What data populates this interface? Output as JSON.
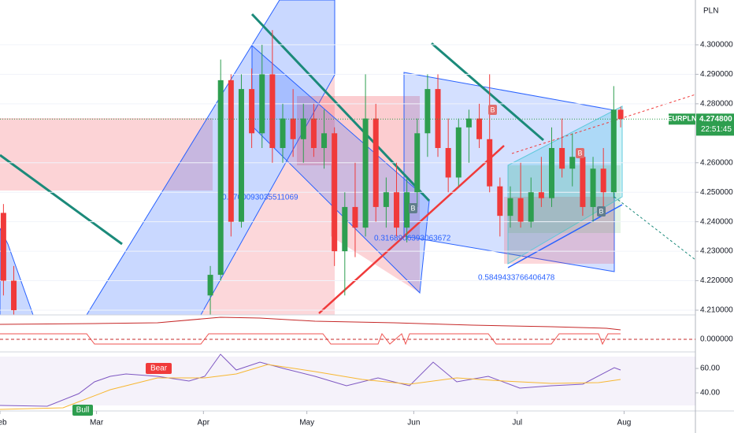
{
  "chart_data": {
    "type": "candlestick",
    "currency": "PLN",
    "symbol": "EURPLN",
    "last_price": 4.2748,
    "last_price_label": "4.274800",
    "countdown": "22:51:45",
    "up_color": "#2e9e4f",
    "down_color": "#f03a3a",
    "xlim": [
      0,
      201
    ],
    "ylim": [
      4.2084,
      4.3152
    ],
    "xticks": [
      {
        "value": 0,
        "label": "Feb"
      },
      {
        "value": 28,
        "label": "Mar"
      },
      {
        "value": 59,
        "label": "Apr"
      },
      {
        "value": 89,
        "label": "May"
      },
      {
        "value": 120,
        "label": "Jun"
      },
      {
        "value": 150,
        "label": "Jul"
      },
      {
        "value": 181,
        "label": "Aug"
      }
    ],
    "yticks": [
      {
        "value": 4.21,
        "label": "4.210000"
      },
      {
        "value": 4.22,
        "label": "4.220000"
      },
      {
        "value": 4.23,
        "label": "4.230000"
      },
      {
        "value": 4.24,
        "label": "4.240000"
      },
      {
        "value": 4.25,
        "label": "4.250000"
      },
      {
        "value": 4.26,
        "label": "4.260000"
      },
      {
        "value": 4.28,
        "label": "4.280000"
      },
      {
        "value": 4.29,
        "label": "4.290000"
      },
      {
        "value": 4.3,
        "label": "4.300000"
      }
    ],
    "x": [
      1,
      4,
      61,
      64,
      67,
      70,
      73,
      76,
      79,
      82,
      85,
      88,
      91,
      94,
      97,
      100,
      103,
      106,
      109,
      112,
      115,
      118,
      121,
      124,
      127,
      130,
      133,
      136,
      139,
      142,
      145,
      148,
      151,
      154,
      157,
      160,
      163,
      166,
      169,
      172,
      175,
      178,
      180
    ],
    "open": [
      4.243,
      4.22,
      4.215,
      4.222,
      4.288,
      4.24,
      4.285,
      4.27,
      4.29,
      4.265,
      4.275,
      4.268,
      4.275,
      4.265,
      4.27,
      4.23,
      4.245,
      4.238,
      4.275,
      4.245,
      4.25,
      4.238,
      4.25,
      4.27,
      4.285,
      4.265,
      4.255,
      4.272,
      4.275,
      4.268,
      4.252,
      4.242,
      4.248,
      4.24,
      4.25,
      4.248,
      4.265,
      4.258,
      4.262,
      4.245,
      4.258,
      4.25,
      4.278
    ],
    "high": [
      4.246,
      4.225,
      4.225,
      4.295,
      4.29,
      4.29,
      4.292,
      4.3,
      4.305,
      4.28,
      4.285,
      4.28,
      4.28,
      4.278,
      4.272,
      4.25,
      4.26,
      4.29,
      4.28,
      4.255,
      4.26,
      4.255,
      4.275,
      4.29,
      4.29,
      4.275,
      4.275,
      4.278,
      4.28,
      4.29,
      4.255,
      4.252,
      4.26,
      4.255,
      4.262,
      4.272,
      4.275,
      4.27,
      4.265,
      4.262,
      4.265,
      4.286,
      4.279
    ],
    "low": [
      4.215,
      4.205,
      4.205,
      4.22,
      4.235,
      4.238,
      4.265,
      4.265,
      4.26,
      4.26,
      4.262,
      4.26,
      4.262,
      4.258,
      4.225,
      4.215,
      4.228,
      4.235,
      4.24,
      4.238,
      4.235,
      4.233,
      4.245,
      4.262,
      4.262,
      4.25,
      4.252,
      4.26,
      4.265,
      4.25,
      4.235,
      4.238,
      4.238,
      4.238,
      4.245,
      4.245,
      4.255,
      4.252,
      4.242,
      4.24,
      4.245,
      4.248,
      4.272
    ],
    "close": [
      4.22,
      4.21,
      4.222,
      4.288,
      4.24,
      4.285,
      4.27,
      4.29,
      4.265,
      4.275,
      4.268,
      4.275,
      4.265,
      4.27,
      4.23,
      4.245,
      4.238,
      4.275,
      4.245,
      4.25,
      4.238,
      4.25,
      4.27,
      4.285,
      4.265,
      4.255,
      4.272,
      4.275,
      4.268,
      4.252,
      4.242,
      4.248,
      4.24,
      4.25,
      4.248,
      4.265,
      4.258,
      4.262,
      4.245,
      4.258,
      4.25,
      4.278,
      4.2748
    ]
  },
  "drawings": {
    "labels": [
      "0.5700093035511069",
      "0.3168906393063672",
      "0.5849433766406478"
    ],
    "signals": [
      "B",
      "B",
      "B",
      "B"
    ],
    "bear": "Bear",
    "bull": "Bull"
  },
  "indicators": {
    "oscillator_ticks": [
      {
        "value": 0,
        "label": "0.000000"
      }
    ],
    "rsi_ticks": [
      {
        "value": 60,
        "label": "60.00"
      },
      {
        "value": 40,
        "label": "40.00"
      }
    ]
  }
}
